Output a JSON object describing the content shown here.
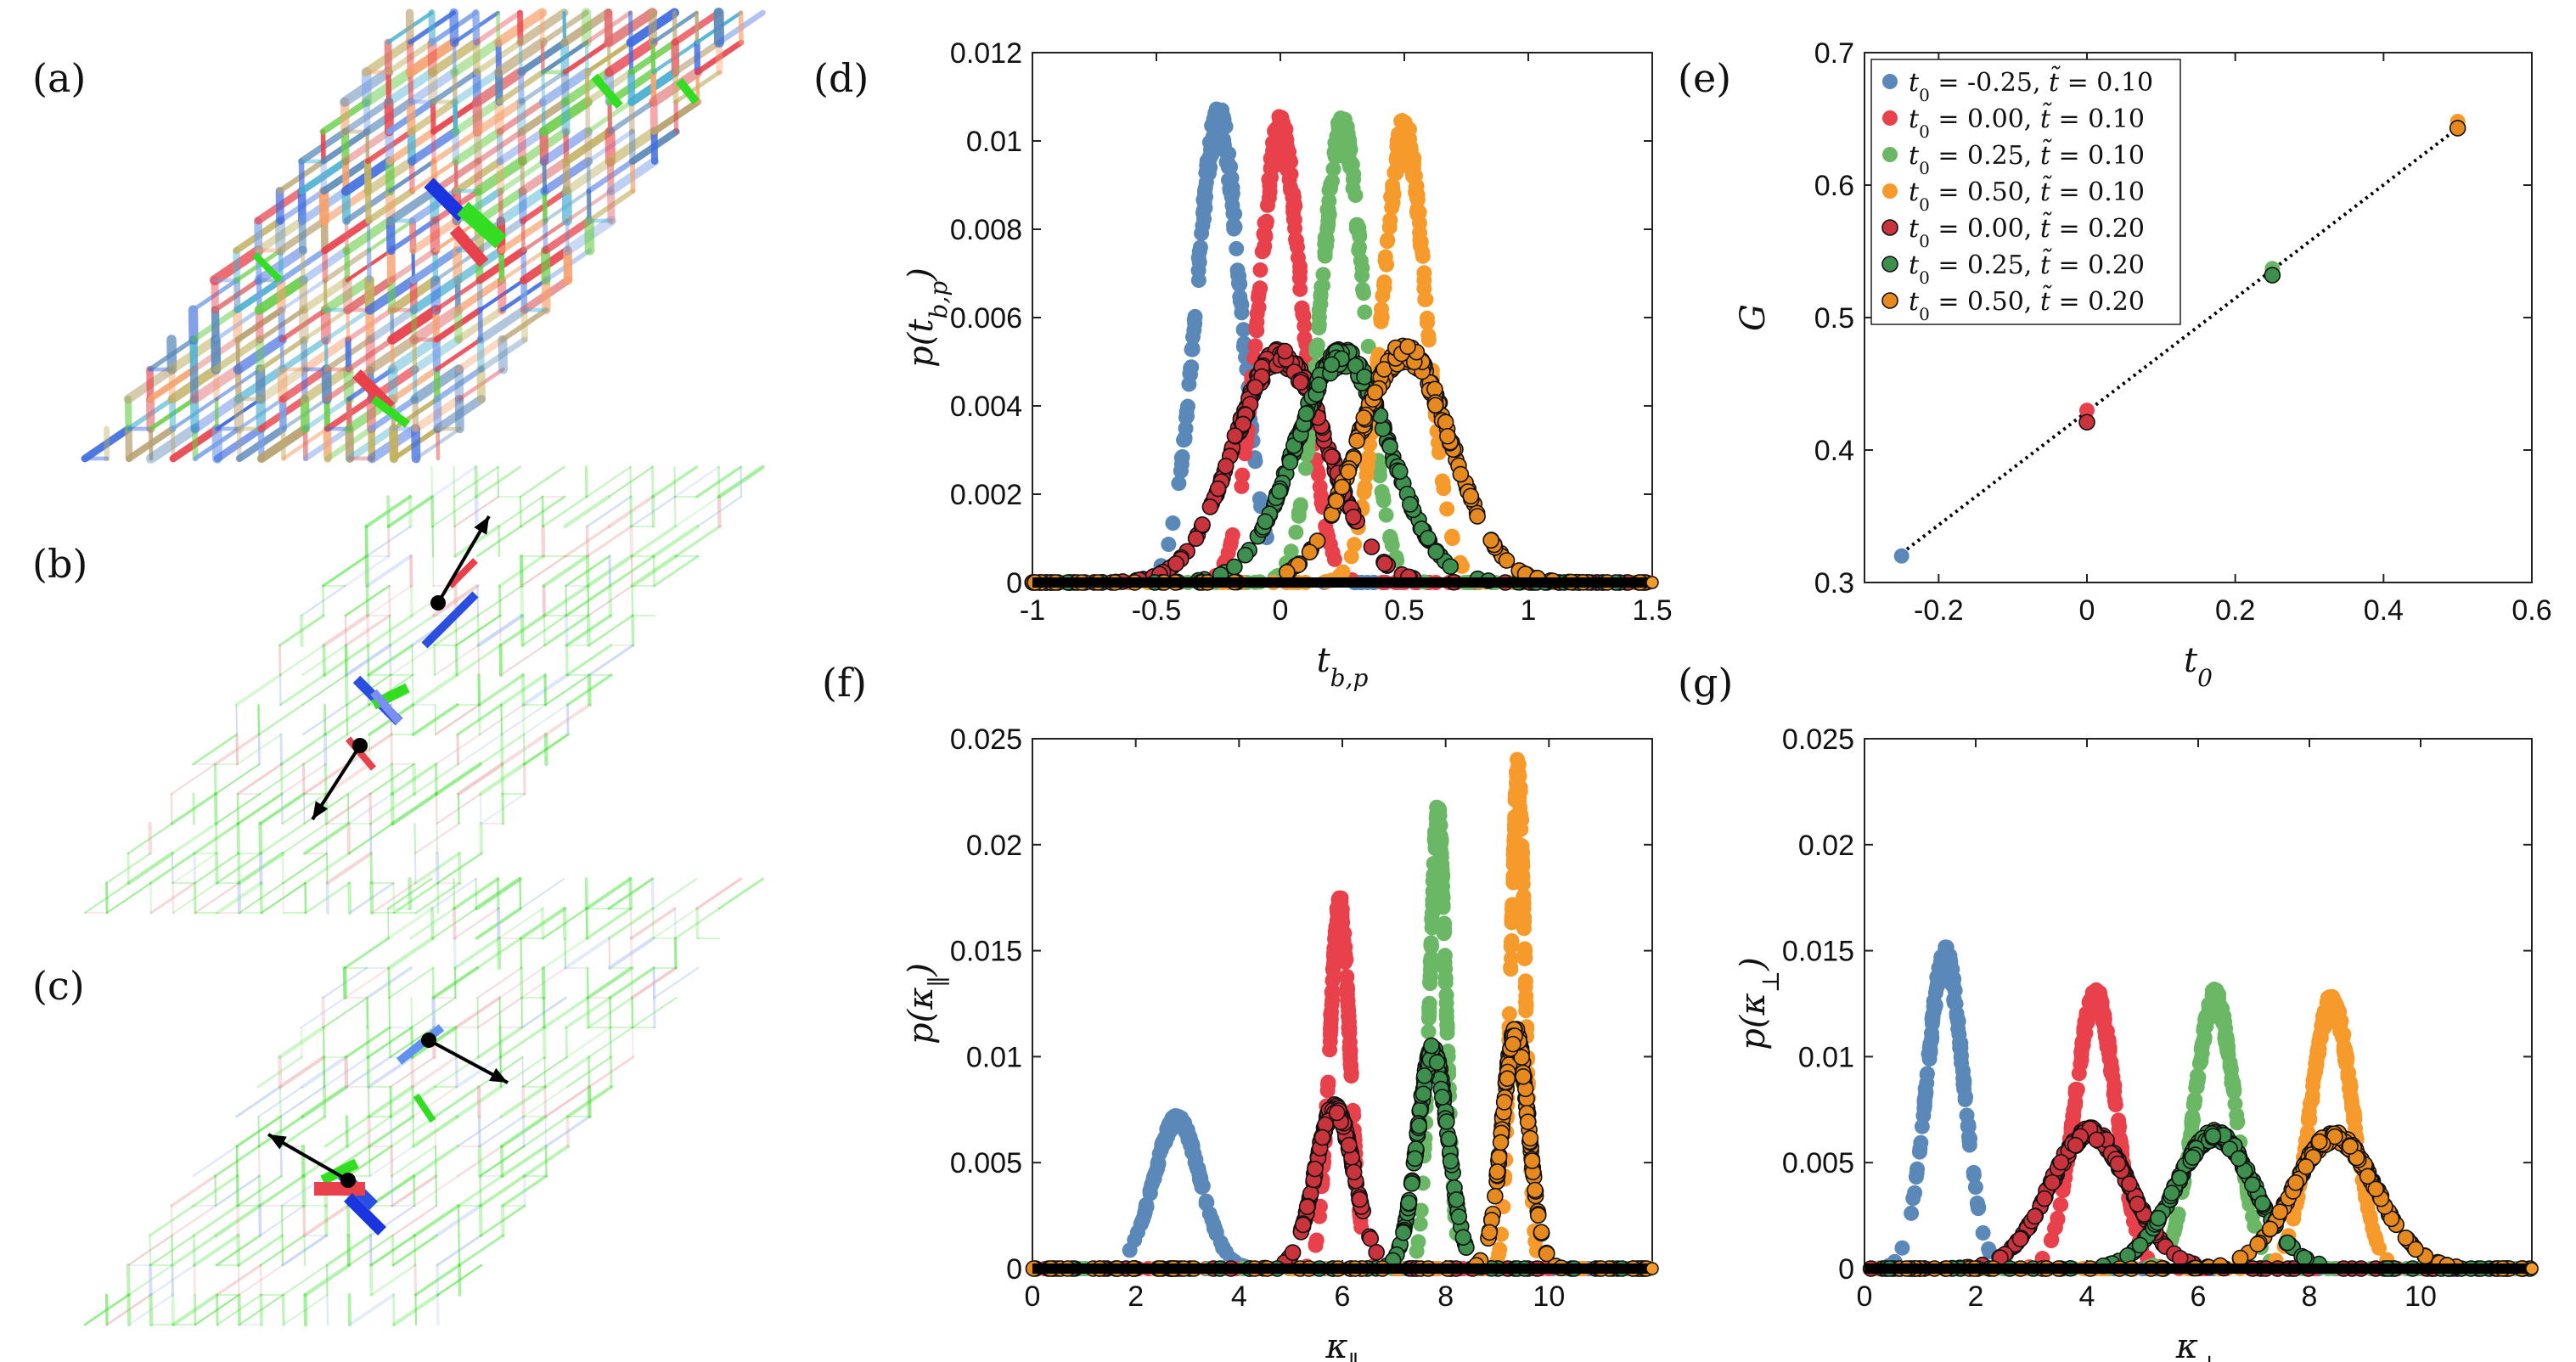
{
  "panel_labels": {
    "a": "(a)",
    "b": "(b)",
    "c": "(c)",
    "d": "(d)",
    "e": "(e)",
    "f": "(f)",
    "g": "(g)"
  },
  "colors": {
    "blue": "#5a88b8",
    "red": "#e8414b",
    "green": "#6ab866",
    "orange": "#f79a2c",
    "dark_red": "#c9343c",
    "dark_green": "#3d8f4e",
    "dark_orange": "#e6891f",
    "lattice_green": "#33dd22",
    "lattice_blue": "#2a4fe0",
    "arrow": "#000000"
  },
  "chart_data": [
    {
      "id": "d",
      "type": "scatter",
      "xlabel": "t_{b,p}",
      "ylabel": "p(t_{b,p})",
      "xlim": [
        -1,
        1.5
      ],
      "ylim": [
        0,
        0.012
      ],
      "xticks": [
        "-1",
        "-0.5",
        "0",
        "0.5",
        "1",
        "1.5"
      ],
      "yticks": [
        "0",
        "0.002",
        "0.004",
        "0.006",
        "0.008",
        "0.01",
        "0.012"
      ],
      "series": [
        {
          "name": "t0 = -0.25, t~ = 0.10",
          "color": "blue",
          "mean": -0.25,
          "sd": 0.09,
          "peak": 0.0105,
          "outlined": false
        },
        {
          "name": "t0 = 0.00, t~ = 0.10",
          "color": "red",
          "mean": 0.0,
          "sd": 0.09,
          "peak": 0.0102,
          "outlined": false
        },
        {
          "name": "t0 = 0.25, t~ = 0.10",
          "color": "green",
          "mean": 0.25,
          "sd": 0.09,
          "peak": 0.0102,
          "outlined": false
        },
        {
          "name": "t0 = 0.50, t~ = 0.10",
          "color": "orange",
          "mean": 0.5,
          "sd": 0.09,
          "peak": 0.0102,
          "outlined": false
        },
        {
          "name": "t0 = 0.00, t~ = 0.20",
          "color": "dark_red",
          "mean": 0.0,
          "sd": 0.19,
          "peak": 0.0051,
          "outlined": true
        },
        {
          "name": "t0 = 0.25, t~ = 0.20",
          "color": "dark_green",
          "mean": 0.25,
          "sd": 0.19,
          "peak": 0.0051,
          "outlined": true
        },
        {
          "name": "t0 = 0.50, t~ = 0.20",
          "color": "dark_orange",
          "mean": 0.5,
          "sd": 0.19,
          "peak": 0.0052,
          "outlined": true
        }
      ]
    },
    {
      "id": "e",
      "type": "scatter",
      "xlabel": "t_0",
      "ylabel": "G",
      "xlim": [
        -0.3,
        0.6
      ],
      "ylim": [
        0.3,
        0.7
      ],
      "xticks": [
        "-0.2",
        "0",
        "0.2",
        "0.4",
        "0.6"
      ],
      "yticks": [
        "0.3",
        "0.4",
        "0.5",
        "0.6",
        "0.7"
      ],
      "legend": [
        {
          "text": "t0 = -0.25, t~ = 0.10",
          "t0": "-0.25",
          "tt": "0.10",
          "color": "blue"
        },
        {
          "text": "t0 = 0.00, t~ = 0.10",
          "t0": "0.00",
          "tt": "0.10",
          "color": "red"
        },
        {
          "text": "t0 = 0.25, t~ = 0.10",
          "t0": "0.25",
          "tt": "0.10",
          "color": "green"
        },
        {
          "text": "t0 = 0.50, t~ = 0.10",
          "t0": "0.50",
          "tt": "0.10",
          "color": "orange"
        },
        {
          "text": "t0 = 0.00, t~ = 0.20",
          "t0": "0.00",
          "tt": "0.20",
          "color": "dark_red"
        },
        {
          "text": "t0 = 0.25, t~ = 0.20",
          "t0": "0.25",
          "tt": "0.20",
          "color": "dark_green"
        },
        {
          "text": "t0 = 0.50, t~ = 0.20",
          "t0": "0.50",
          "tt": "0.20",
          "color": "dark_orange"
        }
      ],
      "points": [
        {
          "x": -0.25,
          "y": 0.32,
          "color": "blue",
          "outlined": false
        },
        {
          "x": 0.0,
          "y": 0.43,
          "color": "red",
          "outlined": false
        },
        {
          "x": 0.25,
          "y": 0.537,
          "color": "green",
          "outlined": false
        },
        {
          "x": 0.5,
          "y": 0.648,
          "color": "orange",
          "outlined": false
        },
        {
          "x": 0.0,
          "y": 0.421,
          "color": "dark_red",
          "outlined": true
        },
        {
          "x": 0.25,
          "y": 0.532,
          "color": "dark_green",
          "outlined": true
        },
        {
          "x": 0.5,
          "y": 0.643,
          "color": "dark_orange",
          "outlined": true
        }
      ],
      "fit_line": {
        "x": [
          -0.25,
          0.5
        ],
        "y": [
          0.322,
          0.643
        ]
      }
    },
    {
      "id": "f",
      "type": "scatter",
      "xlabel": "κ_∥",
      "ylabel": "p(κ_∥)",
      "xlim": [
        0,
        12
      ],
      "ylim": [
        0,
        0.025
      ],
      "xticks": [
        "0",
        "2",
        "4",
        "6",
        "8",
        "10"
      ],
      "yticks": [
        "0",
        "0.005",
        "0.01",
        "0.015",
        "0.02",
        "0.025"
      ],
      "series": [
        {
          "name": "blue",
          "color": "blue",
          "mean": 2.8,
          "sd": 0.45,
          "peak": 0.007,
          "outlined": false
        },
        {
          "name": "red",
          "color": "red",
          "mean": 5.95,
          "sd": 0.2,
          "peak": 0.017,
          "outlined": false
        },
        {
          "name": "green",
          "color": "green",
          "mean": 7.85,
          "sd": 0.16,
          "peak": 0.0212,
          "outlined": false
        },
        {
          "name": "orange",
          "color": "orange",
          "mean": 9.4,
          "sd": 0.14,
          "peak": 0.0232,
          "outlined": false
        },
        {
          "name": "dark_red",
          "color": "dark_red",
          "mean": 5.85,
          "sd": 0.38,
          "peak": 0.0075,
          "outlined": true
        },
        {
          "name": "dark_green",
          "color": "dark_green",
          "mean": 7.75,
          "sd": 0.3,
          "peak": 0.0102,
          "outlined": true
        },
        {
          "name": "dark_orange",
          "color": "dark_orange",
          "mean": 9.35,
          "sd": 0.26,
          "peak": 0.011,
          "outlined": true
        }
      ]
    },
    {
      "id": "g",
      "type": "scatter",
      "xlabel": "κ_⊥",
      "ylabel": "p(κ_⊥)",
      "xlim": [
        0,
        12
      ],
      "ylim": [
        0,
        0.025
      ],
      "xticks": [
        "0",
        "2",
        "4",
        "6",
        "8",
        "10"
      ],
      "yticks": [
        "0",
        "0.005",
        "0.01",
        "0.015",
        "0.02",
        "0.025"
      ],
      "series": [
        {
          "name": "blue",
          "color": "blue",
          "mean": 1.45,
          "sd": 0.33,
          "peak": 0.0147,
          "outlined": false
        },
        {
          "name": "red",
          "color": "red",
          "mean": 4.15,
          "sd": 0.37,
          "peak": 0.0128,
          "outlined": false
        },
        {
          "name": "green",
          "color": "green",
          "mean": 6.3,
          "sd": 0.37,
          "peak": 0.0127,
          "outlined": false
        },
        {
          "name": "orange",
          "color": "orange",
          "mean": 8.4,
          "sd": 0.38,
          "peak": 0.0125,
          "outlined": false
        },
        {
          "name": "dark_red",
          "color": "dark_red",
          "mean": 4.05,
          "sd": 0.72,
          "peak": 0.0064,
          "outlined": true
        },
        {
          "name": "dark_green",
          "color": "dark_green",
          "mean": 6.3,
          "sd": 0.72,
          "peak": 0.0063,
          "outlined": true
        },
        {
          "name": "dark_orange",
          "color": "dark_orange",
          "mean": 8.45,
          "sd": 0.75,
          "peak": 0.0062,
          "outlined": true
        }
      ]
    }
  ]
}
